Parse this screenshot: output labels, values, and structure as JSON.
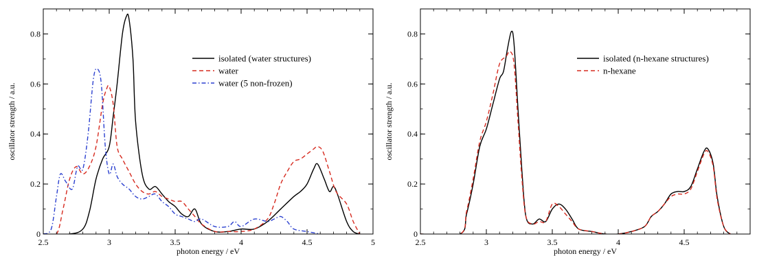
{
  "chart_data": [
    {
      "type": "line",
      "xlabel": "photon energy / eV",
      "ylabel": "oscillator strength / a.u.",
      "xlim": [
        2.5,
        5.0
      ],
      "ylim": [
        0,
        0.9
      ],
      "xticks": [
        2.5,
        3,
        3.5,
        4,
        4.5,
        5
      ],
      "xtick_labels": [
        "2.5",
        "3",
        "3.5",
        "4",
        "4.5",
        "5"
      ],
      "yticks": [
        0,
        0.2,
        0.4,
        0.6,
        0.8
      ],
      "ytick_labels": [
        "0",
        "0.2",
        "0.4",
        "0.6",
        "0.8"
      ],
      "grid": false,
      "legend_position": "upper-right",
      "series": [
        {
          "name": "isolated (water structures)",
          "color": "#000000",
          "dash": "solid",
          "x": [
            2.5,
            2.7,
            2.8,
            2.85,
            2.9,
            2.95,
            3.0,
            3.03,
            3.06,
            3.1,
            3.13,
            3.15,
            3.18,
            3.2,
            3.25,
            3.3,
            3.35,
            3.4,
            3.45,
            3.5,
            3.55,
            3.6,
            3.65,
            3.7,
            3.8,
            3.9,
            4.0,
            4.1,
            4.2,
            4.3,
            4.4,
            4.45,
            4.5,
            4.55,
            4.58,
            4.63,
            4.67,
            4.7,
            4.73,
            4.8,
            4.85,
            4.9
          ],
          "y": [
            0.0,
            0.0,
            0.02,
            0.09,
            0.22,
            0.3,
            0.35,
            0.47,
            0.6,
            0.8,
            0.87,
            0.86,
            0.7,
            0.45,
            0.24,
            0.18,
            0.19,
            0.16,
            0.13,
            0.11,
            0.08,
            0.07,
            0.1,
            0.04,
            0.01,
            0.01,
            0.02,
            0.02,
            0.05,
            0.1,
            0.15,
            0.17,
            0.2,
            0.26,
            0.28,
            0.22,
            0.17,
            0.19,
            0.16,
            0.05,
            0.01,
            0.0
          ]
        },
        {
          "name": "water",
          "color": "#d62a1f",
          "dash": "6,4",
          "x": [
            2.5,
            2.6,
            2.65,
            2.7,
            2.75,
            2.8,
            2.85,
            2.9,
            2.95,
            2.98,
            3.0,
            3.03,
            3.06,
            3.1,
            3.15,
            3.2,
            3.25,
            3.3,
            3.35,
            3.4,
            3.45,
            3.5,
            3.55,
            3.6,
            3.65,
            3.7,
            3.8,
            3.9,
            4.0,
            4.1,
            4.2,
            4.25,
            4.3,
            4.35,
            4.4,
            4.45,
            4.5,
            4.55,
            4.58,
            4.62,
            4.67,
            4.72,
            4.8,
            4.85,
            4.9
          ],
          "y": [
            0.0,
            0.0,
            0.1,
            0.22,
            0.27,
            0.24,
            0.27,
            0.35,
            0.52,
            0.58,
            0.59,
            0.52,
            0.35,
            0.3,
            0.25,
            0.2,
            0.17,
            0.16,
            0.17,
            0.15,
            0.14,
            0.13,
            0.13,
            0.1,
            0.07,
            0.04,
            0.01,
            0.01,
            0.01,
            0.02,
            0.06,
            0.12,
            0.2,
            0.25,
            0.29,
            0.3,
            0.32,
            0.34,
            0.35,
            0.33,
            0.25,
            0.17,
            0.12,
            0.05,
            0.0
          ]
        },
        {
          "name": "water (5 non-frozen)",
          "color": "#2a3fcf",
          "dash": "6,3,1.5,3",
          "x": [
            2.5,
            2.56,
            2.6,
            2.63,
            2.67,
            2.72,
            2.76,
            2.8,
            2.84,
            2.88,
            2.91,
            2.94,
            2.97,
            3.0,
            3.03,
            3.06,
            3.1,
            3.15,
            3.2,
            3.25,
            3.3,
            3.35,
            3.4,
            3.45,
            3.5,
            3.55,
            3.6,
            3.65,
            3.7,
            3.8,
            3.9,
            3.95,
            4.0,
            4.1,
            4.2,
            4.25,
            4.3,
            4.35,
            4.4,
            4.5,
            4.6
          ],
          "y": [
            0.0,
            0.02,
            0.15,
            0.24,
            0.21,
            0.18,
            0.27,
            0.26,
            0.4,
            0.62,
            0.66,
            0.6,
            0.35,
            0.24,
            0.28,
            0.23,
            0.2,
            0.18,
            0.15,
            0.14,
            0.15,
            0.16,
            0.13,
            0.11,
            0.08,
            0.07,
            0.06,
            0.05,
            0.06,
            0.03,
            0.03,
            0.05,
            0.03,
            0.06,
            0.05,
            0.06,
            0.07,
            0.05,
            0.02,
            0.01,
            0.0
          ]
        }
      ]
    },
    {
      "type": "line",
      "xlabel": "photon energy / eV",
      "ylabel": "oscillator strength / a.u.",
      "xlim": [
        2.5,
        5.0
      ],
      "ylim": [
        0,
        0.9
      ],
      "xticks": [
        2.5,
        3,
        3.5,
        4,
        4.5
      ],
      "xtick_labels": [
        "2.5",
        "3",
        "3.5",
        "4",
        "4.5"
      ],
      "yticks": [
        0,
        0.2,
        0.4,
        0.6,
        0.8
      ],
      "ytick_labels": [
        "0",
        "0.2",
        "0.4",
        "0.6",
        "0.8"
      ],
      "grid": false,
      "legend_position": "upper-right",
      "series": [
        {
          "name": "isolated (n-hexane structures)",
          "color": "#000000",
          "dash": "solid",
          "x": [
            2.5,
            2.8,
            2.85,
            2.9,
            2.95,
            3.0,
            3.05,
            3.1,
            3.13,
            3.16,
            3.19,
            3.21,
            3.24,
            3.27,
            3.3,
            3.35,
            3.4,
            3.45,
            3.5,
            3.55,
            3.6,
            3.65,
            3.7,
            3.8,
            3.9,
            4.0,
            4.1,
            4.2,
            4.25,
            4.3,
            4.35,
            4.4,
            4.45,
            4.5,
            4.55,
            4.6,
            4.65,
            4.68,
            4.72,
            4.75,
            4.8,
            4.85
          ],
          "y": [
            0.0,
            0.0,
            0.08,
            0.2,
            0.35,
            0.42,
            0.52,
            0.62,
            0.65,
            0.74,
            0.81,
            0.76,
            0.5,
            0.25,
            0.07,
            0.04,
            0.06,
            0.05,
            0.1,
            0.12,
            0.1,
            0.06,
            0.02,
            0.01,
            0.0,
            0.0,
            0.01,
            0.03,
            0.07,
            0.09,
            0.12,
            0.16,
            0.17,
            0.17,
            0.19,
            0.26,
            0.33,
            0.34,
            0.28,
            0.15,
            0.03,
            0.0
          ]
        },
        {
          "name": "n-hexane",
          "color": "#d62a1f",
          "dash": "6,4",
          "x": [
            2.5,
            2.8,
            2.85,
            2.9,
            2.95,
            3.0,
            3.05,
            3.1,
            3.15,
            3.18,
            3.21,
            3.24,
            3.27,
            3.3,
            3.35,
            3.4,
            3.45,
            3.5,
            3.55,
            3.6,
            3.65,
            3.7,
            3.8,
            3.9,
            4.0,
            4.1,
            4.2,
            4.25,
            4.3,
            4.35,
            4.4,
            4.45,
            4.5,
            4.55,
            4.6,
            4.65,
            4.68,
            4.72,
            4.75,
            4.8,
            4.85
          ],
          "y": [
            0.0,
            0.0,
            0.09,
            0.22,
            0.37,
            0.45,
            0.56,
            0.68,
            0.71,
            0.73,
            0.68,
            0.45,
            0.22,
            0.07,
            0.04,
            0.05,
            0.05,
            0.12,
            0.11,
            0.08,
            0.05,
            0.02,
            0.01,
            0.0,
            0.0,
            0.01,
            0.03,
            0.07,
            0.09,
            0.12,
            0.15,
            0.16,
            0.16,
            0.18,
            0.25,
            0.32,
            0.33,
            0.27,
            0.14,
            0.03,
            0.0
          ]
        }
      ]
    }
  ]
}
